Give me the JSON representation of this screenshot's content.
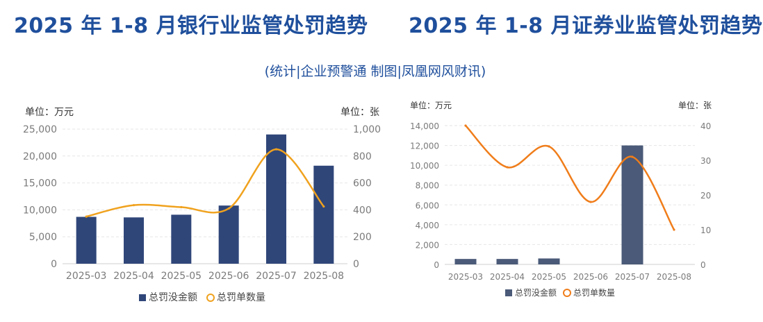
{
  "titles": {
    "left": "2025 年 1-8 月银行业监管处罚趋势",
    "right": "2025 年 1-8 月证券业监管处罚趋势"
  },
  "subtitle": "(统计|企业预警通  制图|凤凰网风财讯)",
  "colors": {
    "title": "#1f4f9c",
    "bank_bar": "#2f4679",
    "securities_bar": "#4a5a78",
    "line": "#f0a21e",
    "line_right": "#f07d1a",
    "grid": "#e6e6e6",
    "axis_text": "#7a7a7a"
  },
  "chart_data": [
    {
      "type": "bar",
      "title": "2025 年 1-8 月银行业监管处罚趋势",
      "categories": [
        "2025-03",
        "2025-04",
        "2025-05",
        "2025-06",
        "2025-07",
        "2025-08"
      ],
      "series": [
        {
          "name": "总罚没金额",
          "type": "bar",
          "axis": "left",
          "values": [
            8700,
            8600,
            9100,
            10800,
            24000,
            18200
          ]
        },
        {
          "name": "总罚单数量",
          "type": "line",
          "axis": "right",
          "values": [
            350,
            435,
            420,
            410,
            850,
            425
          ]
        }
      ],
      "ylabel_left": "单位：万元",
      "ylabel_right": "单位：张",
      "ylim_left": [
        0,
        25000
      ],
      "yticks_left": [
        "0",
        "5,000",
        "10,000",
        "15,000",
        "20,000",
        "25,000"
      ],
      "ylim_right": [
        0,
        1000
      ],
      "yticks_right": [
        "0",
        "200",
        "400",
        "600",
        "800",
        "1,000"
      ],
      "legend": [
        "总罚没金额",
        "总罚单数量"
      ],
      "legend_position": "bottom"
    },
    {
      "type": "bar",
      "title": "2025 年 1-8 月证券业监管处罚趋势",
      "categories": [
        "2025-03",
        "2025-04",
        "2025-05",
        "2025-06",
        "2025-07",
        "2025-08"
      ],
      "series": [
        {
          "name": "总罚没金额",
          "type": "bar",
          "axis": "left",
          "values": [
            550,
            550,
            600,
            0,
            12000,
            0
          ]
        },
        {
          "name": "总罚单数量",
          "type": "line",
          "axis": "right",
          "values": [
            40,
            28,
            34,
            18,
            31,
            10
          ]
        }
      ],
      "ylabel_left": "单位：万元",
      "ylabel_right": "单位：张",
      "ylim_left": [
        0,
        14000
      ],
      "yticks_left": [
        "0",
        "2,000",
        "4,000",
        "6,000",
        "8,000",
        "10,000",
        "12,000",
        "14,000"
      ],
      "ylim_right": [
        0,
        40
      ],
      "yticks_right": [
        "0",
        "10",
        "20",
        "30",
        "40"
      ],
      "legend": [
        "总罚没金额",
        "总罚单数量"
      ],
      "legend_position": "bottom"
    }
  ]
}
